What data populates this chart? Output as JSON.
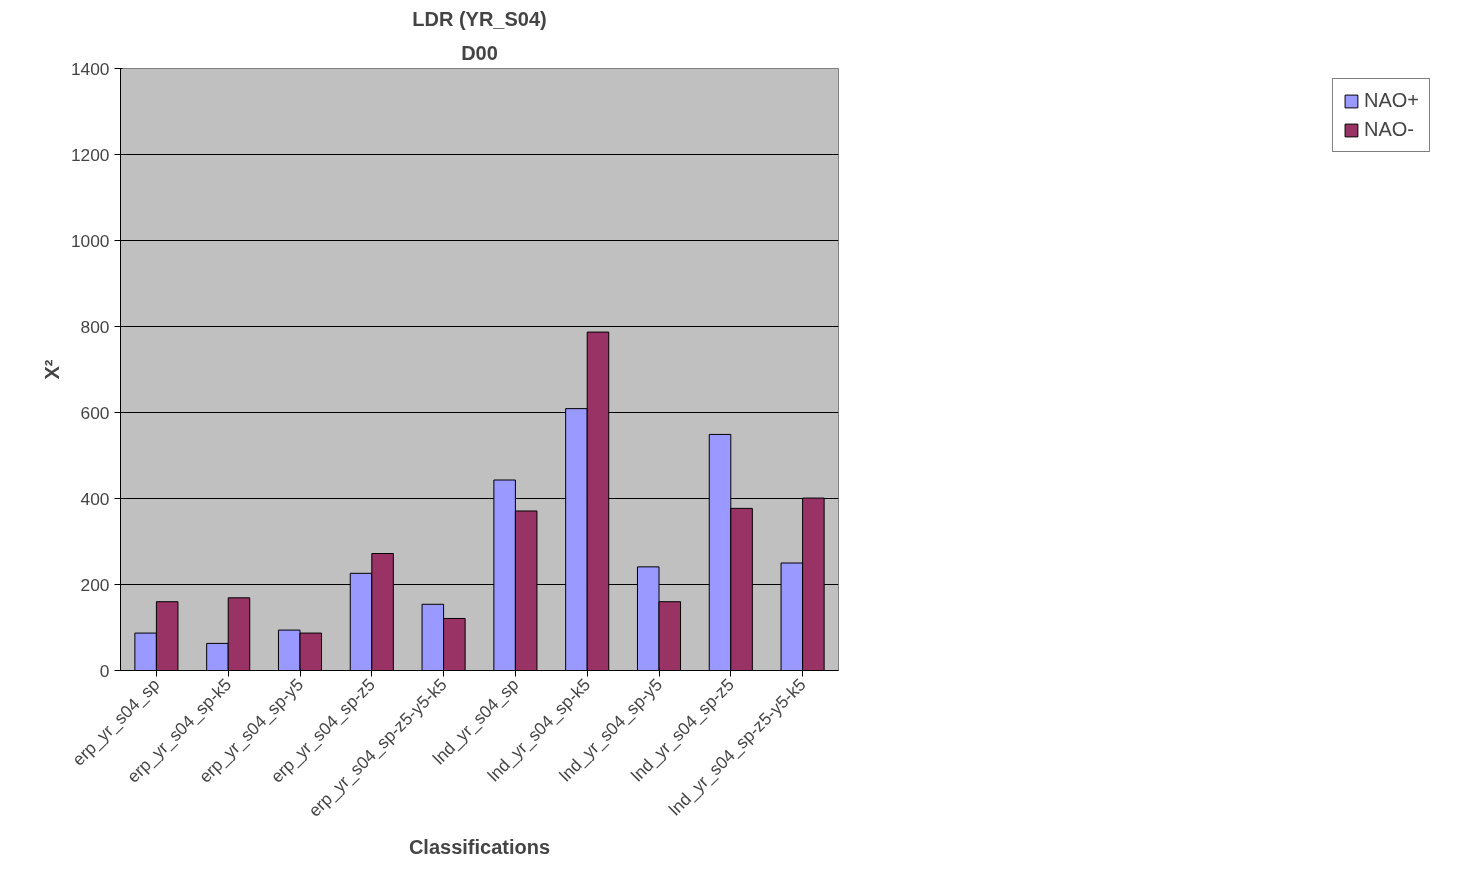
{
  "chart_data": {
    "type": "bar",
    "title": "LDR (YR_S04)",
    "subtitle": "D00",
    "xlabel": "Classifications",
    "ylabel": "X²",
    "categories": [
      "erp_yr_s04_sp",
      "erp_yr_s04_sp-k5",
      "erp_yr_s04_sp-y5",
      "erp_yr_s04_sp-z5",
      "erp_yr_s04_sp-z5-y5-k5",
      "lnd_yr_s04_sp",
      "lnd_yr_s04_sp-k5",
      "lnd_yr_s04_sp-y5",
      "lnd_yr_s04_sp-z5",
      "lnd_yr_s04_sp-z5-y5-k5"
    ],
    "series": [
      {
        "name": "NAO+",
        "color": "#9999ff",
        "values": [
          87,
          63,
          94,
          226,
          154,
          443,
          609,
          241,
          549,
          250
        ]
      },
      {
        "name": "NAO-",
        "color": "#993366",
        "values": [
          160,
          169,
          87,
          272,
          121,
          371,
          787,
          160,
          377,
          401
        ]
      }
    ],
    "ylim": [
      0,
      1400
    ],
    "yticks": [
      0,
      200,
      400,
      600,
      800,
      1000,
      1200,
      1400
    ],
    "grid": "y",
    "legend": "right"
  }
}
